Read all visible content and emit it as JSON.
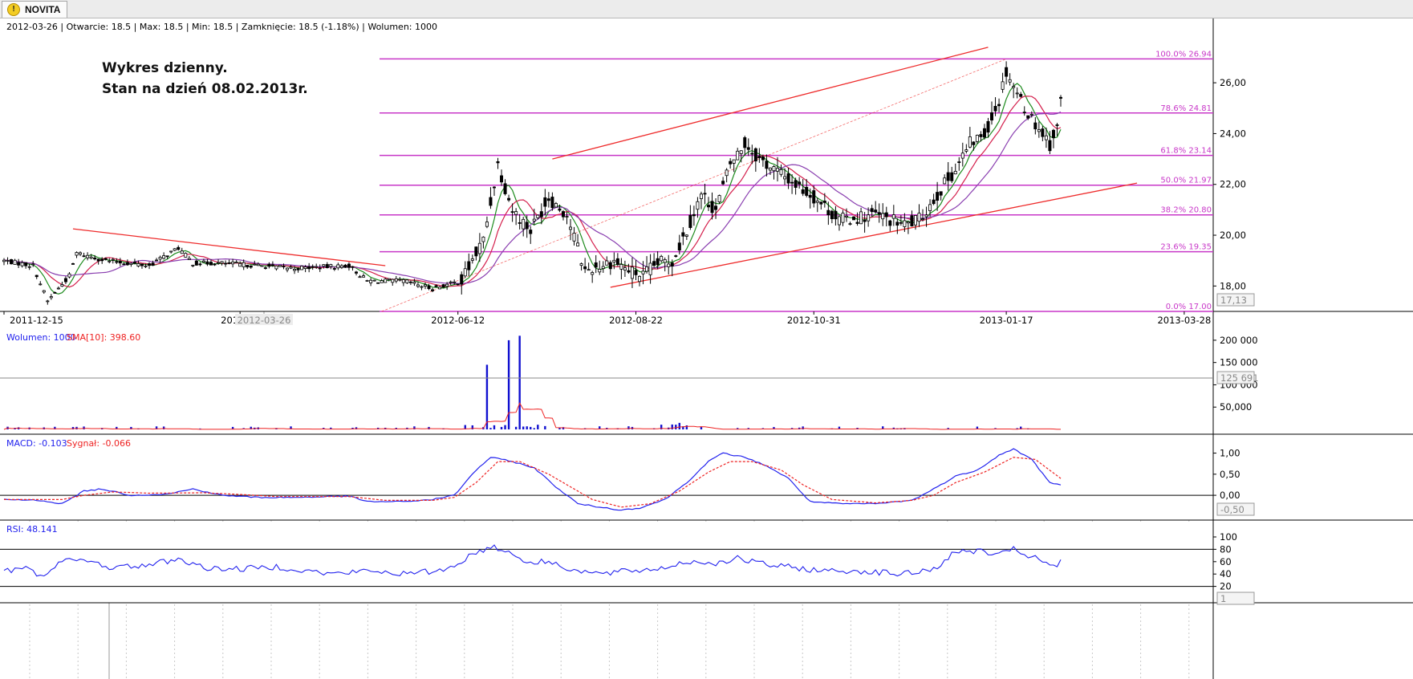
{
  "tab": {
    "label": "NOVITA",
    "icon": "warning-icon"
  },
  "info_bar": "2012-03-26 | Otwarcie: 18.5 | Max: 18.5 | Min: 18.5 | Zamknięcie: 18.5 (-1.18%)  | Wolumen: 1000",
  "annotation": {
    "line1": "Wykres dzienny.",
    "line2": "Stan na dzień 08.02.2013r."
  },
  "colors": {
    "price": "#000000",
    "fib": "#c837c8",
    "trend": "#ee2b2b",
    "sma_fast": "#1c8a1c",
    "sma_mid": "#d4204d",
    "sma_slow": "#8a3fb0",
    "volume": "#1010d0",
    "vol_sma": "#ee2222",
    "macd": "#2222ee",
    "signal": "#ee2222",
    "rsi": "#2222ee",
    "grid": "#c8c8c8"
  },
  "x_axis": {
    "labels": [
      {
        "text": "2011-12-15",
        "i": 0
      },
      {
        "text": "2012-03",
        "i": 65
      },
      {
        "text": "2012-06-12",
        "i": 125
      },
      {
        "text": "2012-08-22",
        "i": 174
      },
      {
        "text": "2012-10-31",
        "i": 223
      },
      {
        "text": "2013-01-17",
        "i": 276
      },
      {
        "text": "2013-03-28",
        "i": 325
      }
    ],
    "cursor_label": "2012-03-26"
  },
  "price_panel": {
    "y_ticks": [
      "26,00",
      "24,00",
      "22,00",
      "20,00",
      "18,00"
    ],
    "y_ticks_values": [
      26,
      24,
      22,
      20,
      18
    ],
    "y_range": [
      17.0,
      27.9
    ],
    "current_marker": "17,13",
    "fib_levels": [
      {
        "label": "100.0% 26.94",
        "value": 26.94
      },
      {
        "label": "78.6% 24.81",
        "value": 24.81
      },
      {
        "label": "61.8% 23.14",
        "value": 23.14
      },
      {
        "label": "50.0% 21.97",
        "value": 21.97
      },
      {
        "label": "38.2% 20.80",
        "value": 20.8
      },
      {
        "label": "23.6% 19.35",
        "value": 19.35
      },
      {
        "label": "0.0% 17.00",
        "value": 17.0
      }
    ]
  },
  "volume_panel": {
    "legend_volume": "Wolumen: 1000",
    "legend_sma": "SMA[10]: 398.60",
    "y_ticks": [
      "200 000",
      "150 000",
      "100 000",
      "50,000"
    ],
    "y_ticks_values": [
      200000,
      150000,
      100000,
      50000
    ],
    "y_max": 225000,
    "current_marker": "125 691"
  },
  "macd_panel": {
    "legend_macd": "MACD: -0.103",
    "legend_signal": "Sygnał: -0.066",
    "y_ticks": [
      "1,00",
      "0,50",
      "0,00"
    ],
    "y_ticks_values": [
      1.0,
      0.5,
      0.0
    ],
    "y_range": [
      -0.55,
      1.22
    ],
    "current_marker": "-0,50"
  },
  "rsi_panel": {
    "legend": "RSI: 48.141",
    "y_ticks": [
      "100",
      "80",
      "60",
      "40",
      "20"
    ],
    "y_ticks_values": [
      100,
      80,
      60,
      40,
      20
    ],
    "current_marker": "1"
  },
  "chart_data": {
    "type": "candlestick",
    "title": "",
    "x_start": "2011-12-15",
    "x_end": "2013-03-28",
    "price_keyframes": [
      [
        0,
        19.0
      ],
      [
        8,
        18.8
      ],
      [
        12,
        17.4
      ],
      [
        18,
        18.4
      ],
      [
        20,
        19.3
      ],
      [
        28,
        19.0
      ],
      [
        40,
        18.8
      ],
      [
        48,
        19.5
      ],
      [
        52,
        18.9
      ],
      [
        60,
        18.9
      ],
      [
        80,
        18.7
      ],
      [
        95,
        18.8
      ],
      [
        100,
        18.2
      ],
      [
        110,
        18.2
      ],
      [
        118,
        17.9
      ],
      [
        126,
        18.2
      ],
      [
        132,
        19.8
      ],
      [
        136,
        22.8
      ],
      [
        140,
        21.0
      ],
      [
        145,
        20.2
      ],
      [
        150,
        21.5
      ],
      [
        155,
        20.8
      ],
      [
        158,
        19.5
      ],
      [
        160,
        18.6
      ],
      [
        168,
        19.0
      ],
      [
        172,
        18.6
      ],
      [
        176,
        18.4
      ],
      [
        180,
        18.9
      ],
      [
        184,
        19.0
      ],
      [
        188,
        20.2
      ],
      [
        192,
        21.6
      ],
      [
        196,
        21.0
      ],
      [
        200,
        22.8
      ],
      [
        204,
        23.6
      ],
      [
        208,
        23.0
      ],
      [
        214,
        22.4
      ],
      [
        220,
        21.8
      ],
      [
        224,
        21.4
      ],
      [
        230,
        20.6
      ],
      [
        240,
        20.8
      ],
      [
        248,
        20.4
      ],
      [
        252,
        20.6
      ],
      [
        258,
        21.8
      ],
      [
        262,
        22.6
      ],
      [
        266,
        23.6
      ],
      [
        270,
        24.0
      ],
      [
        274,
        25.3
      ],
      [
        276,
        26.5
      ],
      [
        279,
        25.6
      ],
      [
        282,
        24.8
      ],
      [
        285,
        24.2
      ],
      [
        288,
        23.6
      ],
      [
        290,
        24.2
      ],
      [
        291,
        25.4
      ]
    ],
    "trendlines": [
      {
        "name": "downtrend",
        "from": [
          19,
          20.25
        ],
        "to": [
          105,
          18.8
        ]
      },
      {
        "name": "upper channel",
        "from": [
          151,
          23.0
        ],
        "to": [
          271,
          27.4
        ]
      },
      {
        "name": "lower channel",
        "from": [
          167,
          17.95
        ],
        "to": [
          312,
          22.05
        ]
      },
      {
        "name": "fib diagonal",
        "from": [
          104,
          17.0
        ],
        "to": [
          276,
          26.94
        ]
      }
    ],
    "volume_spikes": [
      {
        "i": 133,
        "v": 145000
      },
      {
        "i": 139,
        "v": 200000
      },
      {
        "i": 142,
        "v": 210000
      }
    ],
    "macd_keyframes": [
      [
        0,
        -0.1
      ],
      [
        10,
        -0.12
      ],
      [
        16,
        -0.2
      ],
      [
        22,
        0.1
      ],
      [
        27,
        0.15
      ],
      [
        35,
        0.0
      ],
      [
        45,
        0.03
      ],
      [
        52,
        0.15
      ],
      [
        60,
        0.0
      ],
      [
        70,
        -0.05
      ],
      [
        80,
        -0.05
      ],
      [
        95,
        -0.02
      ],
      [
        100,
        -0.15
      ],
      [
        110,
        -0.15
      ],
      [
        118,
        -0.1
      ],
      [
        124,
        0.0
      ],
      [
        130,
        0.6
      ],
      [
        134,
        0.9
      ],
      [
        140,
        0.8
      ],
      [
        146,
        0.65
      ],
      [
        152,
        0.2
      ],
      [
        158,
        -0.2
      ],
      [
        164,
        -0.28
      ],
      [
        170,
        -0.35
      ],
      [
        175,
        -0.3
      ],
      [
        182,
        -0.1
      ],
      [
        188,
        0.3
      ],
      [
        194,
        0.8
      ],
      [
        198,
        1.0
      ],
      [
        204,
        0.9
      ],
      [
        210,
        0.7
      ],
      [
        216,
        0.4
      ],
      [
        222,
        -0.15
      ],
      [
        230,
        -0.2
      ],
      [
        240,
        -0.2
      ],
      [
        250,
        -0.12
      ],
      [
        255,
        0.1
      ],
      [
        262,
        0.45
      ],
      [
        268,
        0.6
      ],
      [
        274,
        0.95
      ],
      [
        278,
        1.1
      ],
      [
        283,
        0.85
      ],
      [
        288,
        0.3
      ],
      [
        291,
        0.25
      ]
    ],
    "signal_keyframes": [
      [
        0,
        -0.1
      ],
      [
        16,
        -0.1
      ],
      [
        22,
        0.0
      ],
      [
        30,
        0.08
      ],
      [
        40,
        0.05
      ],
      [
        55,
        0.06
      ],
      [
        65,
        0.02
      ],
      [
        75,
        -0.03
      ],
      [
        95,
        -0.03
      ],
      [
        105,
        -0.12
      ],
      [
        118,
        -0.12
      ],
      [
        124,
        -0.05
      ],
      [
        130,
        0.3
      ],
      [
        136,
        0.8
      ],
      [
        142,
        0.8
      ],
      [
        150,
        0.5
      ],
      [
        156,
        0.2
      ],
      [
        162,
        -0.1
      ],
      [
        170,
        -0.28
      ],
      [
        178,
        -0.2
      ],
      [
        186,
        0.1
      ],
      [
        194,
        0.55
      ],
      [
        200,
        0.8
      ],
      [
        206,
        0.8
      ],
      [
        214,
        0.6
      ],
      [
        220,
        0.25
      ],
      [
        228,
        -0.1
      ],
      [
        240,
        -0.18
      ],
      [
        250,
        -0.12
      ],
      [
        256,
        0.0
      ],
      [
        262,
        0.3
      ],
      [
        270,
        0.55
      ],
      [
        278,
        0.9
      ],
      [
        284,
        0.85
      ],
      [
        291,
        0.4
      ]
    ],
    "rsi_keyframes": [
      [
        0,
        44
      ],
      [
        6,
        50
      ],
      [
        10,
        35
      ],
      [
        14,
        55
      ],
      [
        18,
        62
      ],
      [
        24,
        60
      ],
      [
        30,
        50
      ],
      [
        40,
        55
      ],
      [
        48,
        65
      ],
      [
        55,
        50
      ],
      [
        65,
        48
      ],
      [
        75,
        52
      ],
      [
        90,
        40
      ],
      [
        100,
        45
      ],
      [
        112,
        40
      ],
      [
        122,
        48
      ],
      [
        130,
        75
      ],
      [
        135,
        85
      ],
      [
        140,
        72
      ],
      [
        145,
        58
      ],
      [
        150,
        60
      ],
      [
        158,
        45
      ],
      [
        165,
        40
      ],
      [
        172,
        45
      ],
      [
        180,
        48
      ],
      [
        188,
        60
      ],
      [
        196,
        58
      ],
      [
        202,
        65
      ],
      [
        210,
        55
      ],
      [
        218,
        50
      ],
      [
        226,
        45
      ],
      [
        236,
        45
      ],
      [
        248,
        40
      ],
      [
        256,
        48
      ],
      [
        262,
        75
      ],
      [
        268,
        78
      ],
      [
        274,
        70
      ],
      [
        278,
        80
      ],
      [
        284,
        65
      ],
      [
        290,
        50
      ],
      [
        291,
        65
      ]
    ]
  }
}
